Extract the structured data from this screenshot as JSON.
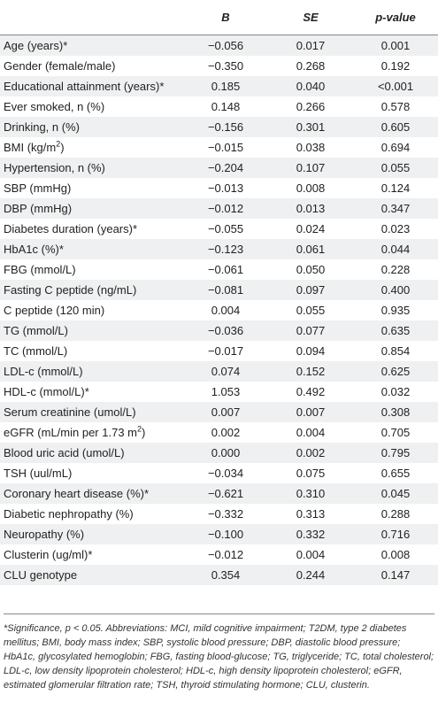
{
  "table": {
    "headers": [
      "",
      "B",
      "SE",
      "p-value"
    ],
    "rows": [
      {
        "label": "Age (years)*",
        "sup": "",
        "suffix": "",
        "b": "−0.056",
        "se": "0.017",
        "p": "0.001"
      },
      {
        "label": "Gender (female/male)",
        "sup": "",
        "suffix": "",
        "b": "−0.350",
        "se": "0.268",
        "p": "0.192"
      },
      {
        "label": "Educational attainment (years)*",
        "sup": "",
        "suffix": "",
        "b": "0.185",
        "se": "0.040",
        "p": "<0.001"
      },
      {
        "label": "Ever smoked, n (%)",
        "sup": "",
        "suffix": "",
        "b": "0.148",
        "se": "0.266",
        "p": "0.578"
      },
      {
        "label": "Drinking, n (%)",
        "sup": "",
        "suffix": "",
        "b": "−0.156",
        "se": "0.301",
        "p": "0.605"
      },
      {
        "label": "BMI (kg/m",
        "sup": "2",
        "suffix": ")",
        "b": "−0.015",
        "se": "0.038",
        "p": "0.694"
      },
      {
        "label": "Hypertension, n (%)",
        "sup": "",
        "suffix": "",
        "b": "−0.204",
        "se": "0.107",
        "p": "0.055"
      },
      {
        "label": "SBP (mmHg)",
        "sup": "",
        "suffix": "",
        "b": "−0.013",
        "se": "0.008",
        "p": "0.124"
      },
      {
        "label": "DBP (mmHg)",
        "sup": "",
        "suffix": "",
        "b": "−0.012",
        "se": "0.013",
        "p": "0.347"
      },
      {
        "label": "Diabetes duration (years)*",
        "sup": "",
        "suffix": "",
        "b": "−0.055",
        "se": "0.024",
        "p": "0.023"
      },
      {
        "label": "HbA1c (%)*",
        "sup": "",
        "suffix": "",
        "b": "−0.123",
        "se": "0.061",
        "p": "0.044"
      },
      {
        "label": "FBG (mmol/L)",
        "sup": "",
        "suffix": "",
        "b": "−0.061",
        "se": "0.050",
        "p": "0.228"
      },
      {
        "label": "Fasting C peptide (ng/mL)",
        "sup": "",
        "suffix": "",
        "b": "−0.081",
        "se": "0.097",
        "p": "0.400"
      },
      {
        "label": "C peptide (120 min)",
        "sup": "",
        "suffix": "",
        "b": "0.004",
        "se": "0.055",
        "p": "0.935"
      },
      {
        "label": "TG (mmol/L)",
        "sup": "",
        "suffix": "",
        "b": "−0.036",
        "se": "0.077",
        "p": "0.635"
      },
      {
        "label": "TC (mmol/L)",
        "sup": "",
        "suffix": "",
        "b": "−0.017",
        "se": "0.094",
        "p": "0.854"
      },
      {
        "label": "LDL-c (mmol/L)",
        "sup": "",
        "suffix": "",
        "b": "0.074",
        "se": "0.152",
        "p": "0.625"
      },
      {
        "label": "HDL-c (mmol/L)*",
        "sup": "",
        "suffix": "",
        "b": "1.053",
        "se": "0.492",
        "p": "0.032"
      },
      {
        "label": "Serum creatinine (umol/L)",
        "sup": "",
        "suffix": "",
        "b": "0.007",
        "se": "0.007",
        "p": "0.308"
      },
      {
        "label": "eGFR (mL/min per 1.73 m",
        "sup": "2",
        "suffix": ")",
        "b": "0.002",
        "se": "0.004",
        "p": "0.705"
      },
      {
        "label": "Blood uric acid (umol/L)",
        "sup": "",
        "suffix": "",
        "b": "0.000",
        "se": "0.002",
        "p": "0.795"
      },
      {
        "label": "TSH (uul/mL)",
        "sup": "",
        "suffix": "",
        "b": "−0.034",
        "se": "0.075",
        "p": "0.655"
      },
      {
        "label": "Coronary heart disease (%)*",
        "sup": "",
        "suffix": "",
        "b": "−0.621",
        "se": "0.310",
        "p": "0.045"
      },
      {
        "label": "Diabetic nephropathy (%)",
        "sup": "",
        "suffix": "",
        "b": "−0.332",
        "se": "0.313",
        "p": "0.288"
      },
      {
        "label": "Neuropathy (%)",
        "sup": "",
        "suffix": "",
        "b": "−0.100",
        "se": "0.332",
        "p": "0.716"
      },
      {
        "label": "Clusterin (ug/ml)*",
        "sup": "",
        "suffix": "",
        "b": "−0.012",
        "se": "0.004",
        "p": "0.008"
      },
      {
        "label": "CLU genotype",
        "sup": "",
        "suffix": "",
        "b": "0.354",
        "se": "0.244",
        "p": "0.147"
      }
    ]
  },
  "footnote": "*Significance, p < 0.05. Abbreviations: MCI, mild cognitive impairment; T2DM, type 2 diabetes mellitus; BMI, body mass index; SBP, systolic blood pressure; DBP, diastolic blood pressure; HbA1c, glycosylated hemoglobin; FBG, fasting blood-glucose; TG, triglyceride; TC, total cholesterol; LDL-c, low density lipoprotein cholesterol; HDL-c, high density lipoprotein cholesterol; eGFR, estimated glomerular filtration rate; TSH, thyroid stimulating hormone; CLU, clusterin."
}
